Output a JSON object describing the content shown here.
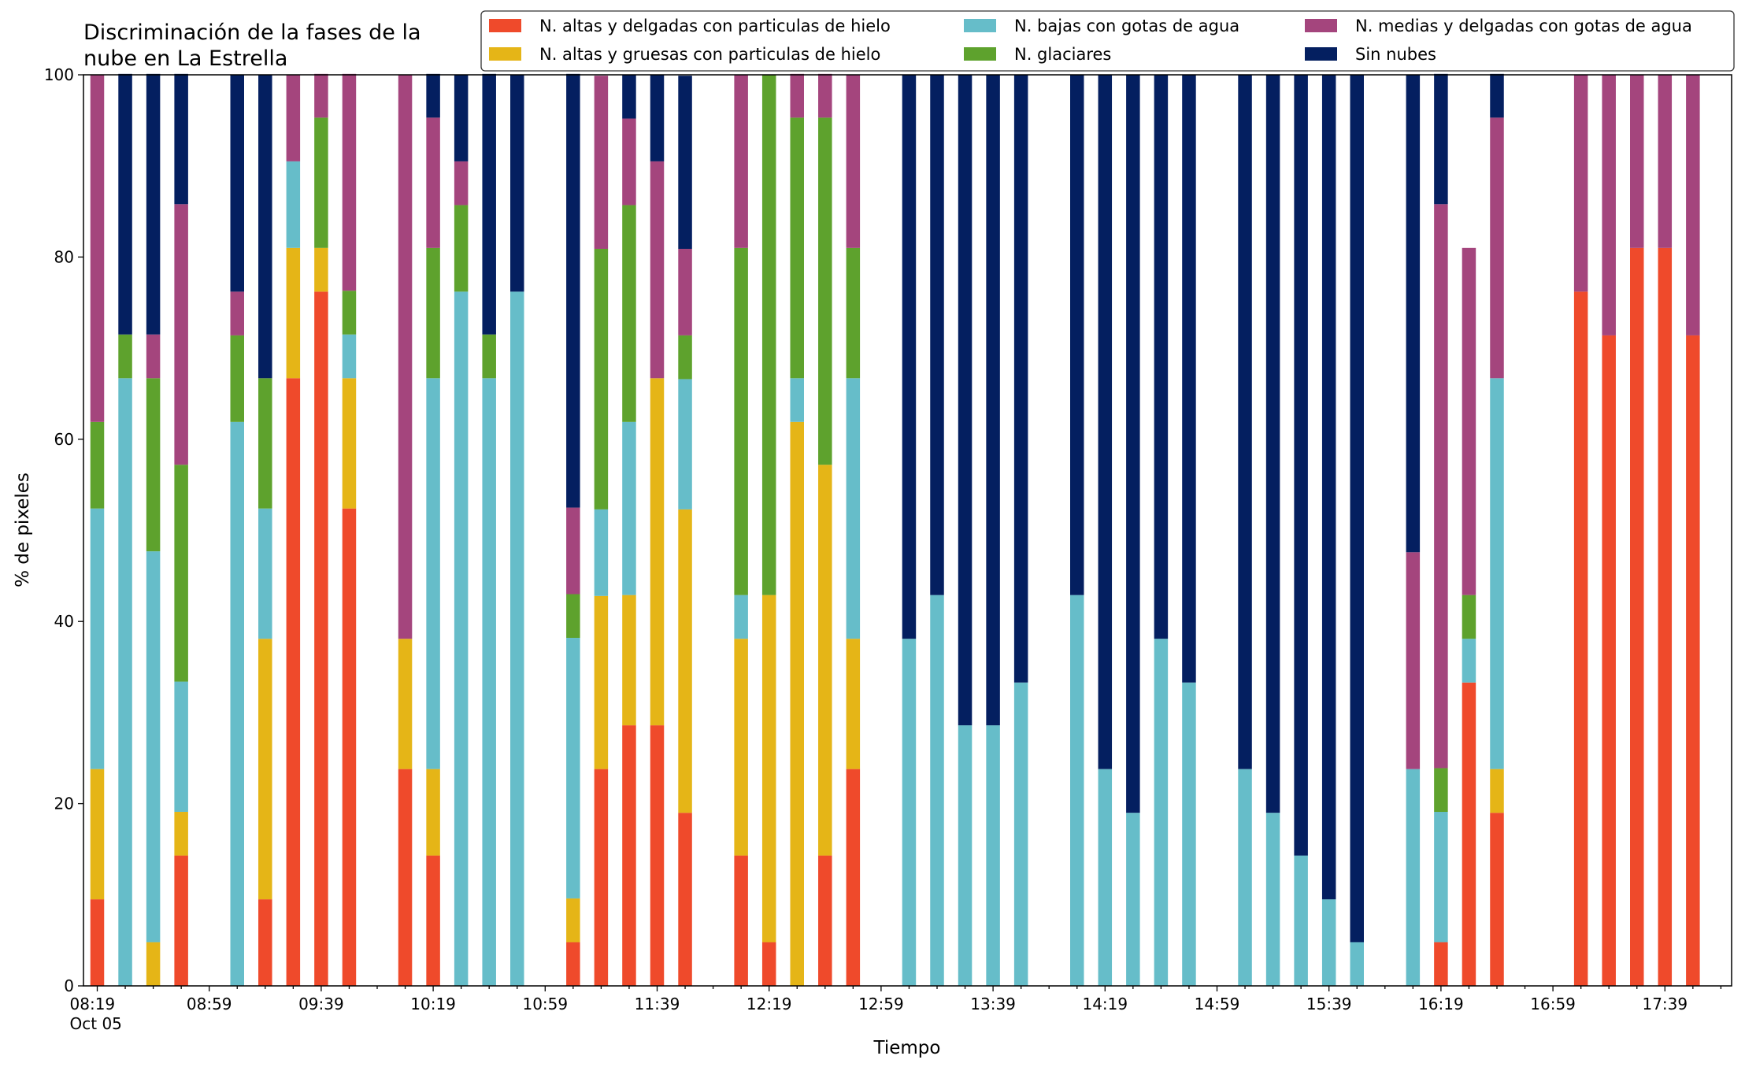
{
  "chart_data": {
    "type": "bar",
    "stacked": true,
    "title": "Discriminación de la fases de la nube en La Estrella",
    "title_lines": [
      "Discriminación de la fases de la",
      "nube en La Estrella"
    ],
    "xlabel": "Tiempo",
    "ylabel": "% de pixeles",
    "ylim": [
      0,
      100
    ],
    "yticks": [
      0,
      20,
      40,
      60,
      80,
      100
    ],
    "x_interval_minutes": 10,
    "x_start": "08:19",
    "xtick_labels": [
      {
        "index": 0,
        "label": "08:19",
        "sublabel": "Oct 05"
      },
      {
        "index": 4,
        "label": "08:59"
      },
      {
        "index": 8,
        "label": "09:39"
      },
      {
        "index": 12,
        "label": "10:19"
      },
      {
        "index": 16,
        "label": "10:59"
      },
      {
        "index": 20,
        "label": "11:39"
      },
      {
        "index": 24,
        "label": "12:19"
      },
      {
        "index": 28,
        "label": "12:59"
      },
      {
        "index": 32,
        "label": "13:39"
      },
      {
        "index": 36,
        "label": "14:19"
      },
      {
        "index": 40,
        "label": "14:59"
      },
      {
        "index": 44,
        "label": "15:39"
      },
      {
        "index": 48,
        "label": "16:19"
      },
      {
        "index": 52,
        "label": "16:59"
      },
      {
        "index": 56,
        "label": "17:39"
      }
    ],
    "legend": {
      "placement": "top-right",
      "columns": 3
    },
    "series": [
      {
        "name": "N. altas y delgadas con particulas de hielo",
        "color": "#ef4a2b",
        "values": [
          9.5,
          0,
          0,
          14.3,
          0,
          0,
          9.5,
          66.7,
          76.2,
          52.4,
          0,
          23.8,
          14.3,
          0,
          0,
          0,
          0,
          4.8,
          23.8,
          28.6,
          28.6,
          19,
          0,
          14.3,
          4.8,
          0,
          14.3,
          23.8,
          0,
          0,
          0,
          0,
          0,
          0,
          0,
          0,
          0,
          0,
          0,
          0,
          0,
          0,
          0,
          0,
          0,
          0,
          0,
          0,
          4.8,
          33.3,
          19,
          0,
          0,
          76.2,
          71.4,
          81,
          81,
          71.4
        ]
      },
      {
        "name": "N. altas y gruesas con particulas de hielo",
        "color": "#e5b517",
        "values": [
          14.3,
          0,
          4.8,
          4.8,
          0,
          0,
          28.6,
          14.3,
          4.8,
          14.3,
          0,
          14.3,
          9.5,
          0,
          0,
          0,
          0,
          4.8,
          19,
          14.3,
          38.1,
          33.3,
          0,
          23.8,
          38.1,
          61.9,
          42.9,
          14.3,
          0,
          0,
          0,
          0,
          0,
          0,
          0,
          0,
          0,
          0,
          0,
          0,
          0,
          0,
          0,
          0,
          0,
          0,
          0,
          0,
          0,
          0,
          4.8,
          0,
          0,
          0,
          0,
          0,
          0,
          0
        ]
      },
      {
        "name": "N. bajas con gotas de agua",
        "color": "#66bdc9",
        "values": [
          28.6,
          66.7,
          42.9,
          14.3,
          0,
          61.9,
          14.3,
          9.5,
          0,
          4.8,
          0,
          0,
          42.9,
          76.2,
          66.7,
          76.2,
          0,
          28.6,
          9.5,
          19,
          0,
          14.3,
          0,
          4.8,
          0,
          4.8,
          0,
          28.6,
          0,
          38.1,
          42.9,
          28.6,
          28.6,
          33.3,
          0,
          42.9,
          23.8,
          19,
          38.1,
          33.3,
          0,
          23.8,
          19,
          14.3,
          9.5,
          4.8,
          0,
          23.8,
          14.3,
          4.8,
          42.9,
          0,
          0,
          0,
          0,
          0,
          0,
          0
        ]
      },
      {
        "name": "N. glaciares",
        "color": "#5ea22d",
        "values": [
          9.5,
          4.8,
          19,
          23.8,
          0,
          9.5,
          14.3,
          0,
          14.3,
          4.8,
          0,
          0,
          14.3,
          9.5,
          4.8,
          0,
          0,
          4.8,
          28.6,
          23.8,
          0,
          4.8,
          0,
          38.1,
          57.1,
          28.6,
          38.1,
          14.3,
          0,
          0,
          0,
          0,
          0,
          0,
          0,
          0,
          0,
          0,
          0,
          0,
          0,
          0,
          0,
          0,
          0,
          0,
          0,
          0,
          4.8,
          4.8,
          0,
          0,
          0,
          0,
          0,
          0,
          0,
          0
        ]
      },
      {
        "name": "N. medias y delgadas con gotas de agua",
        "color": "#a4457d",
        "values": [
          38.1,
          0,
          4.8,
          28.6,
          0,
          4.8,
          0,
          9.5,
          4.8,
          23.8,
          0,
          61.9,
          14.3,
          4.8,
          0,
          0,
          0,
          9.5,
          19,
          9.5,
          23.8,
          9.5,
          0,
          19,
          0,
          4.8,
          4.8,
          19,
          0,
          0,
          0,
          0,
          0,
          0,
          0,
          0,
          0,
          0,
          0,
          0,
          0,
          0,
          0,
          0,
          0,
          0,
          0,
          23.8,
          61.9,
          38.1,
          28.6,
          0,
          0,
          23.8,
          28.6,
          19,
          19,
          28.6
        ]
      },
      {
        "name": "Sin nubes",
        "color": "#041f60",
        "values": [
          0,
          28.6,
          28.6,
          14.3,
          0,
          23.8,
          33.3,
          0,
          0,
          0,
          0,
          0,
          4.8,
          9.5,
          28.6,
          23.8,
          0,
          47.6,
          0,
          4.8,
          9.5,
          19,
          0,
          0,
          0,
          0,
          0,
          0,
          0,
          61.9,
          57.1,
          71.4,
          71.4,
          66.7,
          0,
          57.1,
          76.2,
          81,
          61.9,
          66.7,
          0,
          76.2,
          81,
          85.7,
          90.5,
          95.2,
          0,
          52.4,
          14.3,
          0,
          4.8,
          0,
          0,
          0,
          0,
          0,
          0,
          0
        ]
      }
    ]
  }
}
